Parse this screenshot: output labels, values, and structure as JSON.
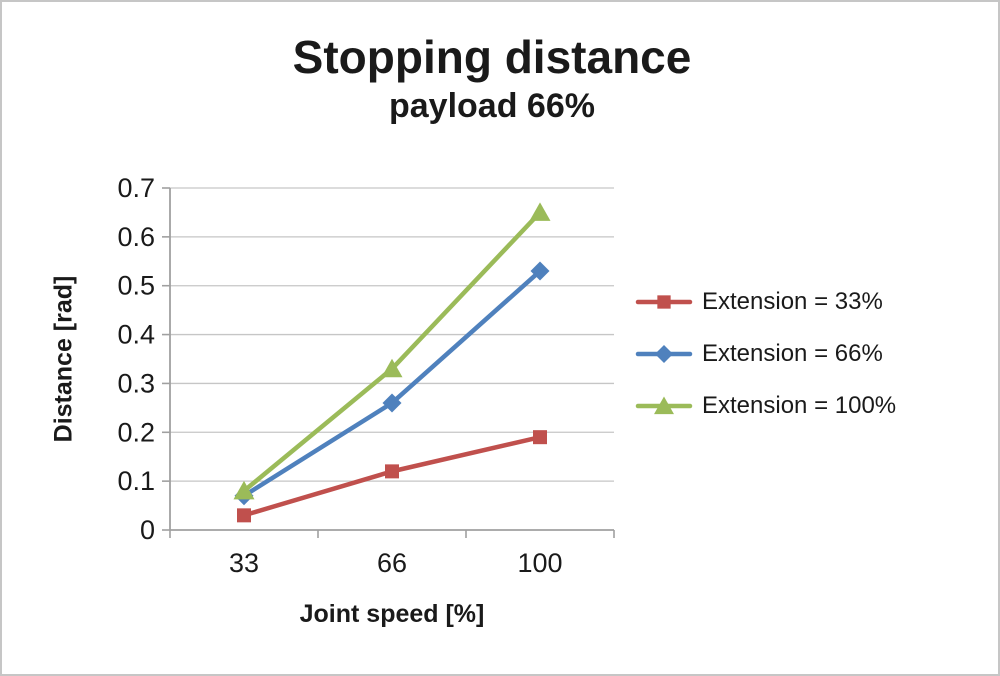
{
  "chart_data": {
    "type": "line",
    "title": "Stopping distance",
    "subtitle": "payload 66%",
    "xlabel": "Joint speed [%]",
    "ylabel": "Distance [rad]",
    "categories": [
      "33",
      "66",
      "100"
    ],
    "series": [
      {
        "name": "Extension = 33%",
        "marker": "square",
        "color": "#c0504d",
        "values": [
          0.03,
          0.12,
          0.19
        ]
      },
      {
        "name": "Extension = 66%",
        "marker": "diamond",
        "color": "#4f81bd",
        "values": [
          0.07,
          0.26,
          0.53
        ]
      },
      {
        "name": "Extension = 100%",
        "marker": "triangle",
        "color": "#9bbb59",
        "values": [
          0.08,
          0.33,
          0.65
        ]
      }
    ],
    "ylim": [
      0,
      0.7
    ],
    "ytick_step": 0.1,
    "ytick_labels": [
      "0",
      "0.1",
      "0.2",
      "0.3",
      "0.4",
      "0.5",
      "0.6",
      "0.7"
    ],
    "grid": true,
    "legend_position": "right"
  },
  "colors": {
    "background": "#ffffff",
    "border": "#c6c6c6",
    "grid": "#c6c6c6",
    "axis": "#a0a0a0",
    "text": "#1a1a1a"
  }
}
